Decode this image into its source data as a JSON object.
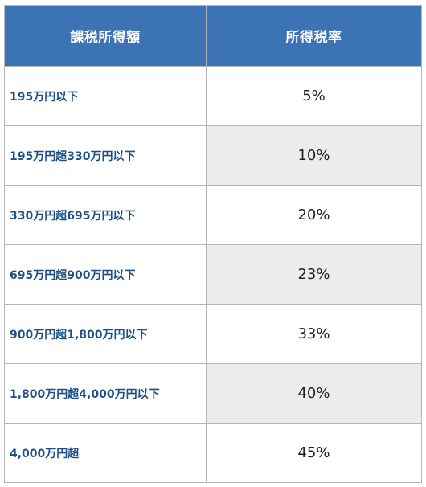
{
  "table": {
    "headers": {
      "taxable_income": "課税所得額",
      "income_tax_rate": "所得税率"
    },
    "rows": [
      {
        "income": "195万円以下",
        "rate": "5%"
      },
      {
        "income": "195万円超330万円以下",
        "rate": "10%"
      },
      {
        "income": "330万円超695万円以下",
        "rate": "20%"
      },
      {
        "income": "695万円超900万円以下",
        "rate": "23%"
      },
      {
        "income": "900万円超1,800万円以下",
        "rate": "33%"
      },
      {
        "income": "1,800万円超4,000万円以下",
        "rate": "40%"
      },
      {
        "income": "4,000万円超",
        "rate": "45%"
      }
    ]
  },
  "colors": {
    "header_background": "#3c73b4",
    "header_text": "#ffffff",
    "income_text": "#1e4f86",
    "shaded_cell": "#ececec",
    "border": "#b5b5b5"
  }
}
